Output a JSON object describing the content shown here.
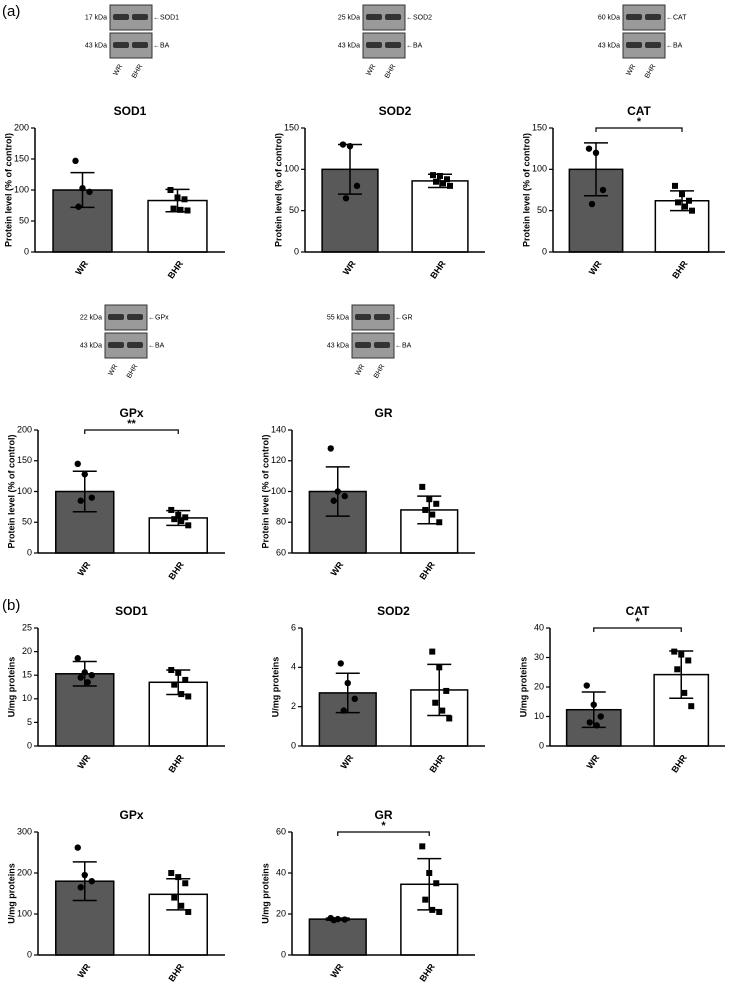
{
  "panel_labels": [
    "(a)",
    "(b)"
  ],
  "blots": [
    {
      "bands": [
        {
          "kda": "17 kDa",
          "label": "←SOD1"
        },
        {
          "kda": "43 kDa",
          "label": "←BA"
        }
      ],
      "lanes": [
        "WR",
        "BHR"
      ]
    },
    {
      "bands": [
        {
          "kda": "25 kDa",
          "label": "←SOD2"
        },
        {
          "kda": "43 kDa",
          "label": "←BA"
        }
      ],
      "lanes": [
        "WR",
        "BHR"
      ]
    },
    {
      "bands": [
        {
          "kda": "60 kDa",
          "label": "←CAT"
        },
        {
          "kda": "43 kDa",
          "label": "←BA"
        }
      ],
      "lanes": [
        "WR",
        "BHR"
      ]
    },
    {
      "bands": [
        {
          "kda": "22 kDa",
          "label": "←GPx"
        },
        {
          "kda": "43 kDa",
          "label": "←BA"
        }
      ],
      "lanes": [
        "WR",
        "BHR"
      ]
    },
    {
      "bands": [
        {
          "kda": "55 kDa",
          "label": "←GR"
        },
        {
          "kda": "43 kDa",
          "label": "←BA"
        }
      ],
      "lanes": [
        "WR",
        "BHR"
      ]
    }
  ],
  "chart_data": [
    {
      "type": "bar",
      "title": "SOD1",
      "ylabel": "Protein level (% of control)",
      "categories": [
        "WR",
        "BHR"
      ],
      "values": [
        100,
        83
      ],
      "errors": [
        28,
        18
      ],
      "points": [
        [
          147,
          103,
          97,
          73
        ],
        [
          100,
          88,
          85,
          70,
          68,
          67
        ]
      ],
      "point_shapes": [
        "circle",
        "square"
      ],
      "colors": [
        "#595959",
        "#ffffff"
      ],
      "ylim": [
        0,
        200
      ],
      "yticks": [
        0,
        50,
        100,
        150,
        200
      ]
    },
    {
      "type": "bar",
      "title": "SOD2",
      "ylabel": "Protein level (% of control)",
      "categories": [
        "WR",
        "BHR"
      ],
      "values": [
        100,
        86
      ],
      "errors": [
        30,
        8
      ],
      "points": [
        [
          130,
          128,
          80,
          65
        ],
        [
          93,
          92,
          88,
          85,
          83,
          80
        ]
      ],
      "point_shapes": [
        "circle",
        "square"
      ],
      "colors": [
        "#595959",
        "#ffffff"
      ],
      "ylim": [
        0,
        150
      ],
      "yticks": [
        0,
        50,
        100,
        150
      ]
    },
    {
      "type": "bar",
      "title": "CAT",
      "ylabel": "Protein level (% of control)",
      "categories": [
        "WR",
        "BHR"
      ],
      "values": [
        100,
        62
      ],
      "errors": [
        32,
        12
      ],
      "points": [
        [
          125,
          120,
          75,
          58
        ],
        [
          80,
          70,
          62,
          60,
          55,
          50
        ]
      ],
      "point_shapes": [
        "circle",
        "square"
      ],
      "colors": [
        "#595959",
        "#ffffff"
      ],
      "ylim": [
        0,
        150
      ],
      "yticks": [
        0,
        50,
        100,
        150
      ],
      "significance": "*"
    },
    {
      "type": "bar",
      "title": "GPx",
      "ylabel": "Protein level (% of control)",
      "categories": [
        "WR",
        "BHR"
      ],
      "values": [
        100,
        57
      ],
      "errors": [
        33,
        12
      ],
      "points": [
        [
          145,
          128,
          90,
          85
        ],
        [
          70,
          62,
          58,
          55,
          52,
          45
        ]
      ],
      "point_shapes": [
        "circle",
        "square"
      ],
      "colors": [
        "#595959",
        "#ffffff"
      ],
      "ylim": [
        0,
        200
      ],
      "yticks": [
        0,
        50,
        100,
        150,
        200
      ],
      "significance": "**"
    },
    {
      "type": "bar",
      "title": "GR",
      "ylabel": "Protein level (% of control)",
      "categories": [
        "WR",
        "BHR"
      ],
      "values": [
        100,
        88
      ],
      "errors": [
        16,
        9
      ],
      "points": [
        [
          128,
          100,
          97,
          94
        ],
        [
          103,
          95,
          92,
          88,
          85,
          80
        ]
      ],
      "point_shapes": [
        "circle",
        "square"
      ],
      "colors": [
        "#595959",
        "#ffffff"
      ],
      "ylim": [
        60,
        140
      ],
      "yticks": [
        60,
        80,
        100,
        120,
        140
      ]
    },
    {
      "type": "bar",
      "title": "SOD1",
      "ylabel": "U/mg proteins",
      "categories": [
        "WR",
        "BHR"
      ],
      "values": [
        15.3,
        13.5
      ],
      "errors": [
        2.6,
        2.6
      ],
      "points": [
        [
          18.6,
          15.6,
          15,
          14.5,
          13.5
        ],
        [
          16.1,
          15.5,
          14,
          13,
          11,
          10.5
        ]
      ],
      "point_shapes": [
        "circle",
        "square"
      ],
      "colors": [
        "#595959",
        "#ffffff"
      ],
      "ylim": [
        0,
        25
      ],
      "yticks": [
        0,
        5,
        10,
        15,
        20,
        25
      ]
    },
    {
      "type": "bar",
      "title": "SOD2",
      "ylabel": "U/mg proteins",
      "categories": [
        "WR",
        "BHR"
      ],
      "values": [
        2.7,
        2.85
      ],
      "errors": [
        1,
        1.3
      ],
      "points": [
        [
          4.2,
          3.2,
          2.4,
          1.8
        ],
        [
          4.8,
          4,
          2.8,
          2.2,
          1.8,
          1.4
        ]
      ],
      "point_shapes": [
        "circle",
        "square"
      ],
      "colors": [
        "#595959",
        "#ffffff"
      ],
      "ylim": [
        0,
        6
      ],
      "yticks": [
        0,
        2,
        4,
        6
      ]
    },
    {
      "type": "bar",
      "title": "CAT",
      "ylabel": "U/mg proteins",
      "categories": [
        "WR",
        "BHR"
      ],
      "values": [
        12.3,
        24.2
      ],
      "errors": [
        6,
        8
      ],
      "points": [
        [
          20.5,
          14,
          10,
          8,
          7
        ],
        [
          32,
          31,
          29,
          26,
          18,
          13.5
        ]
      ],
      "point_shapes": [
        "circle",
        "square"
      ],
      "colors": [
        "#595959",
        "#ffffff"
      ],
      "ylim": [
        0,
        40
      ],
      "yticks": [
        0,
        10,
        20,
        30,
        40
      ],
      "significance": "*"
    },
    {
      "type": "bar",
      "title": "GPx",
      "ylabel": "U/mg proteins",
      "categories": [
        "WR",
        "BHR"
      ],
      "values": [
        180,
        148
      ],
      "errors": [
        47,
        38
      ],
      "points": [
        [
          262,
          195,
          180,
          165
        ],
        [
          200,
          190,
          175,
          140,
          120,
          105
        ]
      ],
      "point_shapes": [
        "circle",
        "square"
      ],
      "colors": [
        "#595959",
        "#ffffff"
      ],
      "ylim": [
        0,
        300
      ],
      "yticks": [
        0,
        100,
        200,
        300
      ]
    },
    {
      "type": "bar",
      "title": "GR",
      "ylabel": "U/mg proteins",
      "categories": [
        "WR",
        "BHR"
      ],
      "values": [
        17.5,
        34.5
      ],
      "errors": [
        0.5,
        12.5
      ],
      "points": [
        [
          18,
          17.5,
          17.3,
          17
        ],
        [
          53,
          40,
          35,
          27,
          22,
          21
        ]
      ],
      "point_shapes": [
        "circle",
        "square"
      ],
      "colors": [
        "#595959",
        "#ffffff"
      ],
      "ylim": [
        0,
        60
      ],
      "yticks": [
        0,
        20,
        40,
        60
      ],
      "significance": "*"
    }
  ]
}
